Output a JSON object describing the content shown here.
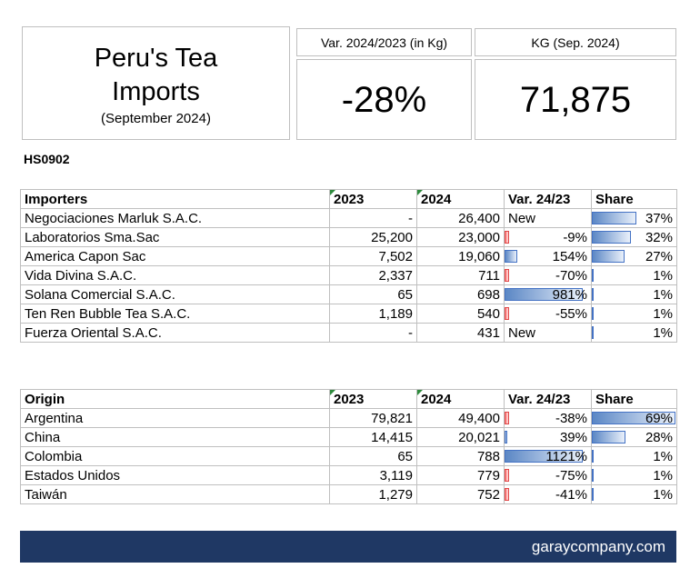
{
  "title": {
    "line1": "Peru's Tea",
    "line2": "Imports",
    "line3": "(September 2024)"
  },
  "kpis": [
    {
      "label": "Var. 2024/2023 (in Kg)",
      "value": "-28%"
    },
    {
      "label": "KG (Sep. 2024)",
      "value": "71,875"
    }
  ],
  "code": "HS0902",
  "importers": {
    "headers": [
      "Importers",
      "2023",
      "2024",
      "Var. 24/23",
      "Share"
    ],
    "rows": [
      {
        "name": "Negociaciones Marluk S.A.C.",
        "y2023": "-",
        "y2024": "26,400",
        "var": "New",
        "var_pct": null,
        "share": "37%",
        "share_pct": 37
      },
      {
        "name": "Laboratorios Sma.Sac",
        "y2023": "25,200",
        "y2024": "23,000",
        "var": "-9%",
        "var_pct": -9,
        "share": "32%",
        "share_pct": 32
      },
      {
        "name": "America Capon Sac",
        "y2023": "7,502",
        "y2024": "19,060",
        "var": "154%",
        "var_pct": 154,
        "share": "27%",
        "share_pct": 27
      },
      {
        "name": "Vida Divina S.A.C.",
        "y2023": "2,337",
        "y2024": "711",
        "var": "-70%",
        "var_pct": -70,
        "share": "1%",
        "share_pct": 1
      },
      {
        "name": "Solana Comercial S.A.C.",
        "y2023": "65",
        "y2024": "698",
        "var": "981%",
        "var_pct": 981,
        "share": "1%",
        "share_pct": 1
      },
      {
        "name": "Ten Ren Bubble Tea S.A.C.",
        "y2023": "1,189",
        "y2024": "540",
        "var": "-55%",
        "var_pct": -55,
        "share": "1%",
        "share_pct": 1
      },
      {
        "name": "Fuerza Oriental S.A.C.",
        "y2023": "-",
        "y2024": "431",
        "var": "New",
        "var_pct": null,
        "share": "1%",
        "share_pct": 1
      }
    ]
  },
  "origins": {
    "headers": [
      "Origin",
      "2023",
      "2024",
      "Var. 24/23",
      "Share"
    ],
    "rows": [
      {
        "name": "Argentina",
        "y2023": "79,821",
        "y2024": "49,400",
        "var": "-38%",
        "var_pct": -38,
        "share": "69%",
        "share_pct": 69
      },
      {
        "name": "China",
        "y2023": "14,415",
        "y2024": "20,021",
        "var": "39%",
        "var_pct": 39,
        "share": "28%",
        "share_pct": 28
      },
      {
        "name": "Colombia",
        "y2023": "65",
        "y2024": "788",
        "var": "1121%",
        "var_pct": 1121,
        "share": "1%",
        "share_pct": 1
      },
      {
        "name": "Estados Unidos",
        "y2023": "3,119",
        "y2024": "779",
        "var": "-75%",
        "var_pct": -75,
        "share": "1%",
        "share_pct": 1
      },
      {
        "name": "Taiwán",
        "y2023": "1,279",
        "y2024": "752",
        "var": "-41%",
        "var_pct": -41,
        "share": "1%",
        "share_pct": 1
      }
    ]
  },
  "footer": {
    "text": "garaycompany.com"
  },
  "colors": {
    "footer_bg": "#1f3864",
    "bar_blue": "#4472c4",
    "bar_red": "#e04848"
  }
}
